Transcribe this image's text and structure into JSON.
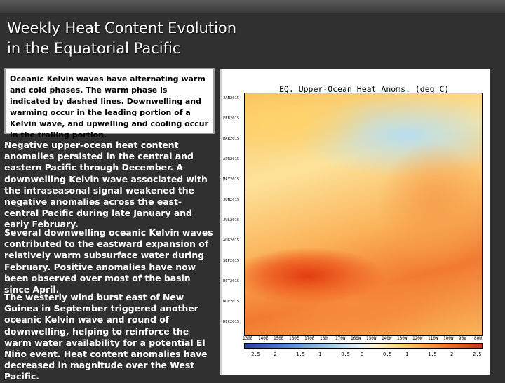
{
  "slide": {
    "title_line1": "Weekly Heat Content Evolution",
    "title_line2": "in the Equatorial Pacific",
    "callout": "Oceanic Kelvin waves have alternating warm and cold phases. The warm phase is indicated by dashed lines. Downwelling and warming occur in the leading portion of a Kelvin wave, and upwelling and cooling occur in the trailing portion.",
    "paragraphs": [
      "Negative upper-ocean heat content anomalies persisted in the central and eastern Pacific through December. A downwelling Kelvin wave associated with the intraseasonal signal weakened the negative anomalies across the east-central Pacific during late January and early February.",
      "Several downwelling oceanic Kelvin waves contributed to the eastward expansion of relatively warm subsurface water during February. Positive anomalies have now been observed over most of the basin since April.",
      "The westerly wind burst east of New Guinea in September triggered another oceanic Kelvin wave and round of downwelling, helping to reinforce the warm water availability for a potential El Niño event. Heat content anomalies have decreased in magnitude over the West Pacific."
    ]
  },
  "map": {
    "title": "EQ. Upper-Ocean Heat Anoms. (deg C)",
    "y_labels": [
      "JAN2015",
      "FEB2015",
      "MAR2015",
      "APR2015",
      "MAY2015",
      "JUN2015",
      "JUL2015",
      "AUG2015",
      "SEP2015",
      "OCT2015",
      "NOV2015",
      "DEC2015"
    ],
    "x_labels": [
      "130E",
      "140E",
      "150E",
      "160E",
      "170E",
      "180",
      "170W",
      "160W",
      "150W",
      "140W",
      "130W",
      "120W",
      "110W",
      "100W",
      "90W",
      "80W"
    ],
    "colorbar_labels": [
      "-2.5",
      "-2",
      "-1.5",
      "-1",
      "-0.5",
      "0",
      "0.5",
      "1",
      "1.5",
      "2",
      "2.5"
    ]
  }
}
